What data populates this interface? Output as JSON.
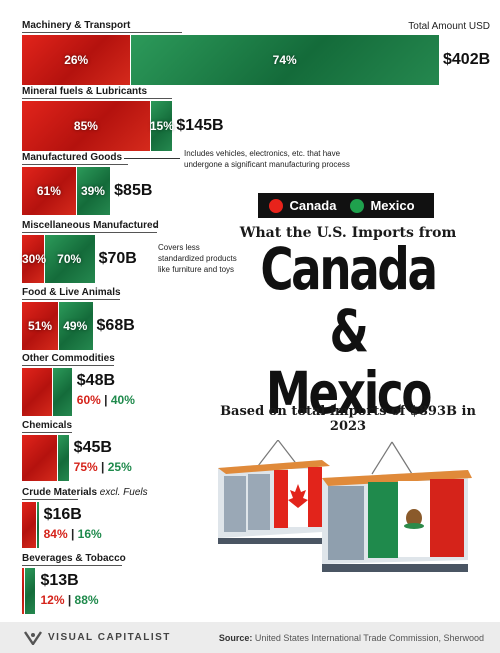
{
  "chart_data": {
    "type": "bar",
    "subtitle": "What the U.S. Imports from",
    "title": "Canada & Mexico",
    "caption": "Based on total imports of $893B in 2023",
    "total_column_label": "Total Amount USD",
    "legend": {
      "placement": "middle-right",
      "entries": [
        {
          "name": "Canada",
          "color": "#e8231b"
        },
        {
          "name": "Mexico",
          "color": "#1fa14d"
        }
      ]
    },
    "categories": [
      {
        "name": "Machinery & Transport",
        "suffix": "",
        "total": 402,
        "total_label": "$402B",
        "canada_pct": 26,
        "mexico_pct": 74,
        "canada_label": "26%",
        "mexico_label": "74%"
      },
      {
        "name": "Mineral fuels & Lubricants",
        "suffix": "",
        "total": 145,
        "total_label": "$145B",
        "canada_pct": 85,
        "mexico_pct": 15,
        "canada_label": "85%",
        "mexico_label": "15%"
      },
      {
        "name": "Manufactured Goods",
        "suffix": "",
        "total": 85,
        "total_label": "$85B",
        "canada_pct": 61,
        "mexico_pct": 39,
        "canada_label": "61%",
        "mexico_label": "39%"
      },
      {
        "name": "Miscellaneous Manufactured",
        "suffix": "",
        "total": 70,
        "total_label": "$70B",
        "canada_pct": 30,
        "mexico_pct": 70,
        "canada_label": "30%",
        "mexico_label": "70%"
      },
      {
        "name": "Food & Live Animals",
        "suffix": "",
        "total": 68,
        "total_label": "$68B",
        "canada_pct": 51,
        "mexico_pct": 49,
        "canada_label": "51%",
        "mexico_label": "49%"
      },
      {
        "name": "Other Commodities",
        "suffix": "",
        "total": 48,
        "total_label": "$48B",
        "canada_pct": 60,
        "mexico_pct": 40,
        "canada_label": "60%",
        "mexico_label": "40%"
      },
      {
        "name": "Chemicals",
        "suffix": "",
        "total": 45,
        "total_label": "$45B",
        "canada_pct": 75,
        "mexico_pct": 25,
        "canada_label": "75%",
        "mexico_label": "25%"
      },
      {
        "name": "Crude Materials",
        "suffix": "excl. Fuels",
        "total": 16,
        "total_label": "$16B",
        "canada_pct": 84,
        "mexico_pct": 16,
        "canada_label": "84%",
        "mexico_label": "16%"
      },
      {
        "name": "Beverages & Tobacco",
        "suffix": "",
        "total": 13,
        "total_label": "$13B",
        "canada_pct": 12,
        "mexico_pct": 88,
        "canada_label": "12%",
        "mexico_label": "88%"
      }
    ],
    "annotations": [
      {
        "category": "Manufactured Goods",
        "text": [
          "Includes vehicles, electronics, etc. that have",
          "undergone a significant manufacturing process"
        ]
      },
      {
        "category": "Miscellaneous Manufactured",
        "text": [
          "Covers less",
          "standardized products",
          "like furniture and toys"
        ]
      }
    ],
    "colors": {
      "canada": "#d5231a",
      "mexico": "#1f8a4c"
    }
  },
  "footer": {
    "brand": "VISUAL CAPITALIST",
    "source_label": "Source:",
    "source_text": "United States International Trade Commission, Sherwood"
  }
}
